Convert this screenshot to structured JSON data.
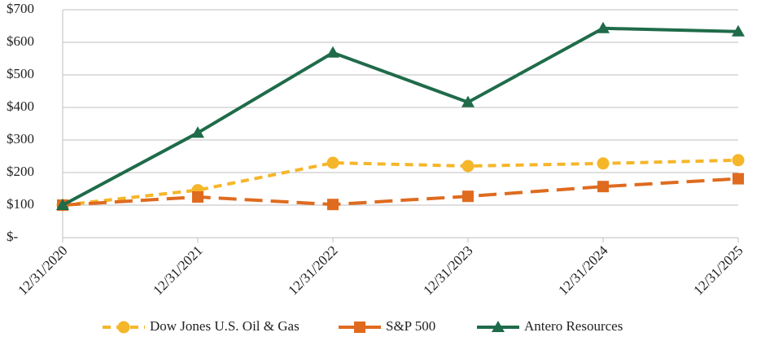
{
  "chart_data": {
    "type": "line",
    "categories": [
      "12/31/2020",
      "12/31/2021",
      "12/31/2022",
      "12/31/2023",
      "12/31/2024",
      "12/31/2025"
    ],
    "series": [
      {
        "name": "Dow Jones U.S. Oil & Gas",
        "color": "#f5b62a",
        "marker": "circle",
        "dash": "short",
        "values": [
          100,
          146,
          230,
          220,
          228,
          238
        ]
      },
      {
        "name": "S&P 500",
        "color": "#df6b1f",
        "marker": "square",
        "dash": "long",
        "values": [
          100,
          125,
          102,
          127,
          157,
          181
        ]
      },
      {
        "name": "Antero Resources",
        "color": "#1f6b4a",
        "marker": "triangle",
        "dash": "solid",
        "values": [
          100,
          322,
          568,
          416,
          643,
          633
        ]
      }
    ],
    "ylim": [
      0,
      700
    ],
    "yticks": [
      {
        "value": 0,
        "label": "$-"
      },
      {
        "value": 100,
        "label": "$100"
      },
      {
        "value": 200,
        "label": "$200"
      },
      {
        "value": 300,
        "label": "$300"
      },
      {
        "value": 400,
        "label": "$400"
      },
      {
        "value": 500,
        "label": "$500"
      },
      {
        "value": 600,
        "label": "$600"
      },
      {
        "value": 700,
        "label": "$700"
      }
    ],
    "grid": true,
    "legend": "bottom"
  }
}
